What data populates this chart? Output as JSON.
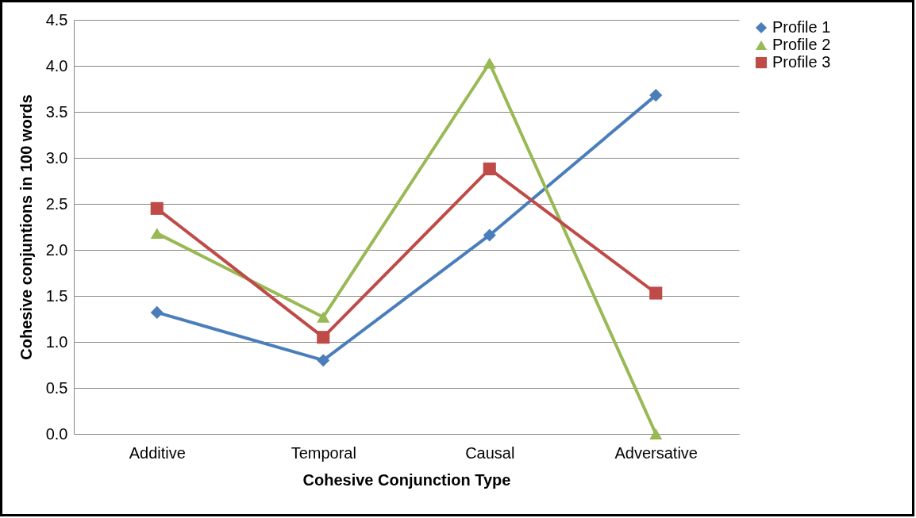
{
  "chart_data": {
    "type": "line",
    "xlabel": "Cohesive Conjunction Type",
    "ylabel": "Cohesive conjuntions in 100 words",
    "categories": [
      "Additive",
      "Temporal",
      "Causal",
      "Adversative"
    ],
    "series": [
      {
        "name": "Profile 1",
        "color": "#4a7ebb",
        "marker": "diamond",
        "values": [
          1.32,
          0.8,
          2.16,
          3.68
        ]
      },
      {
        "name": "Profile 2",
        "color": "#98b954",
        "marker": "triangle",
        "values": [
          2.18,
          1.27,
          4.03,
          0.0
        ]
      },
      {
        "name": "Profile 3",
        "color": "#be4b48",
        "marker": "square",
        "values": [
          2.45,
          1.05,
          2.88,
          1.53
        ]
      }
    ],
    "ylim": [
      0,
      4.5
    ],
    "yticks": [
      {
        "value": 0,
        "label": "0.0"
      },
      0.5,
      {
        "value": 1,
        "label": "1.0"
      },
      1.5,
      {
        "value": 2,
        "label": "2.0"
      },
      2.5,
      {
        "value": 3,
        "label": "3.0"
      },
      3.5,
      {
        "value": 4,
        "label": "4.0"
      },
      4.5
    ],
    "grid": "y",
    "legend": "right",
    "line_style": "solid"
  }
}
